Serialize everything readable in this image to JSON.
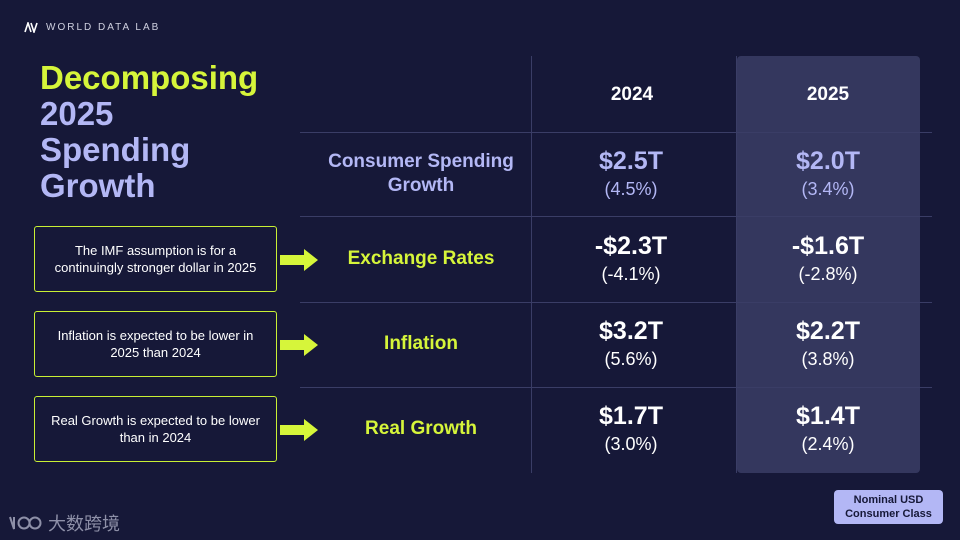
{
  "brand": {
    "name": "WORLD DATA LAB"
  },
  "title": {
    "line1": "Decomposing",
    "line2": "2025",
    "line3": "Spending",
    "line4": "Growth"
  },
  "years": [
    "2024",
    "2025"
  ],
  "rows": [
    {
      "label": "Consumer Spending Growth",
      "v2024": "$2.5T",
      "p2024": "(4.5%)",
      "v2025": "$2.0T",
      "p2025": "(3.4%)"
    },
    {
      "label": "Exchange Rates",
      "v2024": "-$2.3T",
      "p2024": "(-4.1%)",
      "v2025": "-$1.6T",
      "p2025": "(-2.8%)"
    },
    {
      "label": "Inflation",
      "v2024": "$3.2T",
      "p2024": "(5.6%)",
      "v2025": "$2.2T",
      "p2025": "(3.8%)"
    },
    {
      "label": "Real Growth",
      "v2024": "$1.7T",
      "p2024": "(3.0%)",
      "v2025": "$1.4T",
      "p2025": "(2.4%)"
    }
  ],
  "notes": [
    "The IMF assumption is for a continuingly stronger dollar in 2025",
    "Inflation is expected to be lower in 2025 than 2024",
    "Real Growth is expected to be lower than in 2024"
  ],
  "badge": {
    "line1": "Nominal USD",
    "line2": "Consumer Class"
  },
  "watermark": {
    "text": "大数跨境"
  },
  "colors": {
    "background": "#161838",
    "accent_green": "#d6f53a",
    "accent_lavender": "#b3b7f5",
    "highlight_column": "#34375e"
  }
}
